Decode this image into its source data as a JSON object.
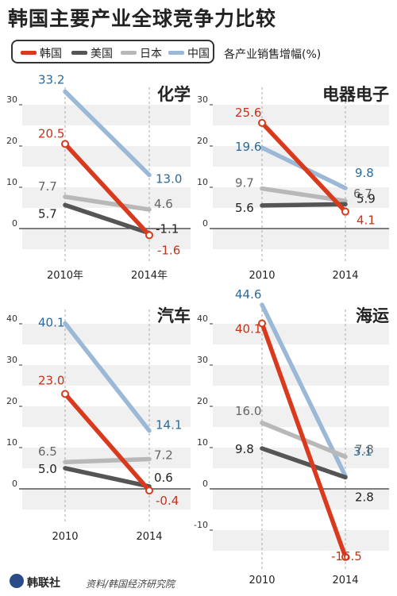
{
  "title": "韩国主要产业全球竞争力比较",
  "metric_note": "各产业销售增幅(%)",
  "legend": [
    {
      "label": "韩国",
      "color": "#d93a1e"
    },
    {
      "label": "美国",
      "color": "#555555"
    },
    {
      "label": "日本",
      "color": "#b8b8b8"
    },
    {
      "label": "中国",
      "color": "#9bb8d6"
    }
  ],
  "footer": {
    "agency": "韩联社",
    "source": "资料/韩国经济研究院"
  },
  "chart_data": [
    {
      "type": "line",
      "title": "化学",
      "categories": [
        "2010年",
        "2014年"
      ],
      "ylim": [
        -5,
        35
      ],
      "yticks": [
        0,
        10,
        20,
        30
      ],
      "series": [
        {
          "name": "中国",
          "values": [
            33.2,
            13.0
          ],
          "labels": [
            "33.2",
            "13.0"
          ]
        },
        {
          "name": "日本",
          "values": [
            7.7,
            4.6
          ],
          "labels": [
            "7.7",
            "4.6"
          ]
        },
        {
          "name": "美国",
          "values": [
            5.7,
            -1.1
          ],
          "labels": [
            "5.7",
            "-1.1"
          ]
        },
        {
          "name": "韩国",
          "values": [
            20.5,
            -1.6
          ],
          "labels": [
            "20.5",
            "-1.6"
          ]
        }
      ]
    },
    {
      "type": "line",
      "title": "电器电子",
      "categories": [
        "2010",
        "2014"
      ],
      "ylim": [
        -5,
        35
      ],
      "yticks": [
        0,
        10,
        20,
        30
      ],
      "series": [
        {
          "name": "中国",
          "values": [
            19.6,
            9.8
          ],
          "labels": [
            "19.6",
            "9.8"
          ]
        },
        {
          "name": "日本",
          "values": [
            9.7,
            6.7
          ],
          "labels": [
            "9.7",
            "6.7"
          ]
        },
        {
          "name": "美国",
          "values": [
            5.6,
            5.9
          ],
          "labels": [
            "5.6",
            "5.9"
          ]
        },
        {
          "name": "韩国",
          "values": [
            25.6,
            4.1
          ],
          "labels": [
            "25.6",
            "4.1"
          ]
        }
      ]
    },
    {
      "type": "line",
      "title": "汽车",
      "categories": [
        "2010",
        "2014"
      ],
      "ylim": [
        -5,
        45
      ],
      "yticks": [
        0,
        10,
        20,
        30,
        40
      ],
      "series": [
        {
          "name": "中国",
          "values": [
            40.1,
            14.1
          ],
          "labels": [
            "40.1",
            "14.1"
          ]
        },
        {
          "name": "日本",
          "values": [
            6.5,
            7.2
          ],
          "labels": [
            "6.5",
            "7.2"
          ]
        },
        {
          "name": "美国",
          "values": [
            5.0,
            0.6
          ],
          "labels": [
            "5.0",
            "0.6"
          ]
        },
        {
          "name": "韩国",
          "values": [
            23.0,
            -0.4
          ],
          "labels": [
            "23.0",
            "-0.4"
          ]
        }
      ]
    },
    {
      "type": "line",
      "title": "海运",
      "categories": [
        "2010",
        "2014"
      ],
      "ylim": [
        -20,
        45
      ],
      "yticks": [
        -10,
        0,
        10,
        20,
        30,
        40
      ],
      "series": [
        {
          "name": "中国",
          "values": [
            44.6,
            3.1
          ],
          "labels": [
            "44.6",
            "3.1"
          ]
        },
        {
          "name": "日本",
          "values": [
            16.0,
            7.8
          ],
          "labels": [
            "16.0",
            "7.8"
          ]
        },
        {
          "name": "美国",
          "values": [
            9.8,
            2.8
          ],
          "labels": [
            "9.8",
            "2.8"
          ]
        },
        {
          "name": "韩国",
          "values": [
            40.1,
            -16.5
          ],
          "labels": [
            "40.1",
            "-16.5"
          ]
        }
      ]
    }
  ]
}
